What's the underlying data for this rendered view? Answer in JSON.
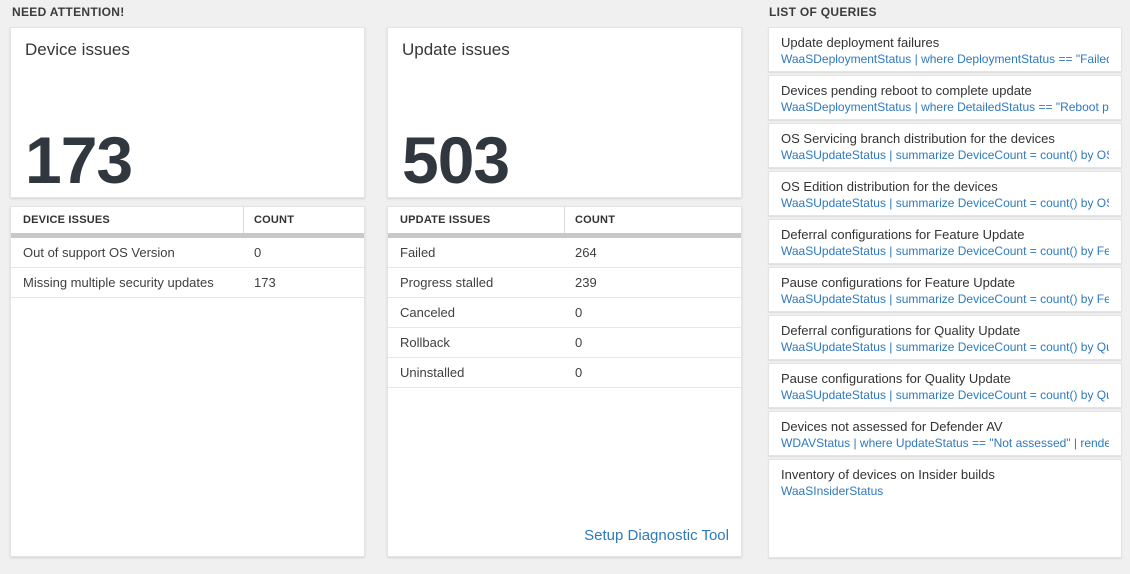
{
  "colors": {
    "page_bg": "#f0f0f0",
    "accent_blue": "#2e79bd",
    "header_bar_gray": "#c8c8c8",
    "big_number_color": "#31373f"
  },
  "sections": {
    "need_attention_label": "NEED ATTENTION!",
    "queries_label": "LIST OF QUERIES"
  },
  "cards": [
    {
      "title": "Device issues",
      "big_number": "173",
      "table": {
        "headers": [
          "DEVICE ISSUES",
          "COUNT"
        ],
        "rows": [
          {
            "label": "Out of support OS Version",
            "count": "0"
          },
          {
            "label": "Missing multiple security updates",
            "count": "173"
          }
        ]
      }
    },
    {
      "title": "Update issues",
      "big_number": "503",
      "table": {
        "headers": [
          "UPDATE ISSUES",
          "COUNT"
        ],
        "rows": [
          {
            "label": "Failed",
            "count": "264"
          },
          {
            "label": "Progress stalled",
            "count": "239"
          },
          {
            "label": "Canceled",
            "count": "0"
          },
          {
            "label": "Rollback",
            "count": "0"
          },
          {
            "label": "Uninstalled",
            "count": "0"
          }
        ]
      },
      "footer_link": "Setup Diagnostic Tool"
    }
  ],
  "queries": [
    {
      "title": "Update deployment failures",
      "query": "WaaSDeploymentStatus | where DeploymentStatus == \"Failed\" |..."
    },
    {
      "title": "Devices pending reboot to complete update",
      "query": "WaaSDeploymentStatus | where DetailedStatus == \"Reboot pend..."
    },
    {
      "title": "OS Servicing branch distribution for the devices",
      "query": "WaaSUpdateStatus | summarize DeviceCount = count() by OSSer..."
    },
    {
      "title": "OS Edition distribution for the devices",
      "query": "WaaSUpdateStatus | summarize DeviceCount = count() by OSEdit..."
    },
    {
      "title": "Deferral configurations for Feature Update",
      "query": "WaaSUpdateStatus | summarize DeviceCount = count() by Featur..."
    },
    {
      "title": "Pause configurations for Feature Update",
      "query": "WaaSUpdateStatus | summarize DeviceCount = count() by Featur..."
    },
    {
      "title": "Deferral configurations for Quality Update",
      "query": "WaaSUpdateStatus | summarize DeviceCount = count() by Qualit..."
    },
    {
      "title": "Pause configurations for Quality Update",
      "query": "WaaSUpdateStatus | summarize DeviceCount = count() by Qualit..."
    },
    {
      "title": "Devices not assessed for Defender AV",
      "query": "WDAVStatus | where UpdateStatus == \"Not assessed\" | render ta..."
    },
    {
      "title": "Inventory of devices on Insider builds",
      "query": "WaaSInsiderStatus"
    }
  ]
}
